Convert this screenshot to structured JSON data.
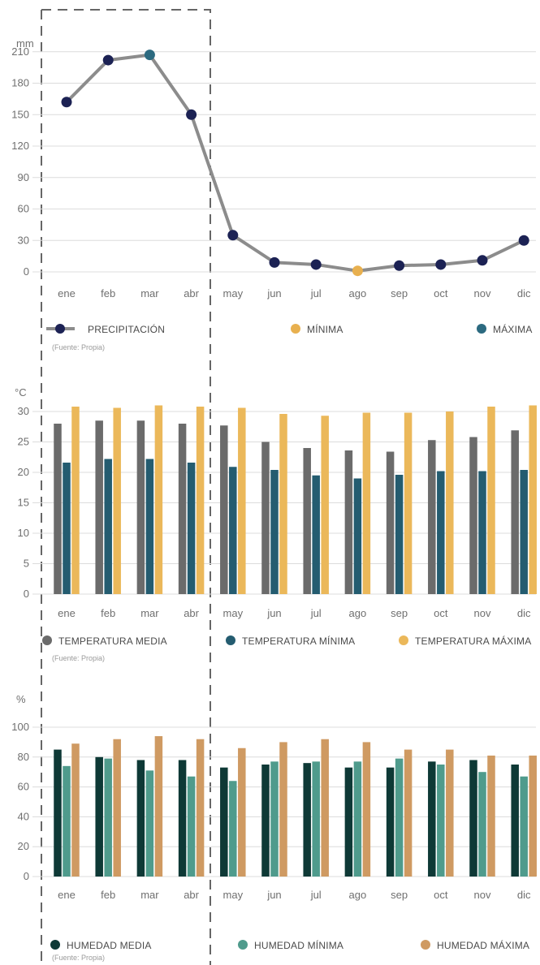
{
  "months": [
    "ene",
    "feb",
    "mar",
    "abr",
    "may",
    "jun",
    "jul",
    "ago",
    "sep",
    "oct",
    "nov",
    "dic"
  ],
  "source_note": "(Fuente: Propia)",
  "colors": {
    "grid": "#dcdcdc",
    "axis": "#8a8a8a",
    "dashed_frame": "#666666",
    "precip_line": "#8c8c8c",
    "precip_point": "#1c2254",
    "minima": "#e8b04f",
    "maxima": "#2c6a80",
    "temp_media": "#6b6b6b",
    "temp_min": "#245c70",
    "temp_max": "#ebb85a",
    "hum_media": "#0e3936",
    "hum_min": "#4f9b8c",
    "hum_max": "#cf9a62"
  },
  "chart_data": [
    {
      "type": "line",
      "unit": "mm",
      "x": [
        "ene",
        "feb",
        "mar",
        "abr",
        "may",
        "jun",
        "jul",
        "ago",
        "sep",
        "oct",
        "nov",
        "dic"
      ],
      "series": [
        {
          "name": "PRECIPITACIÓN",
          "values": [
            162,
            202,
            207,
            150,
            35,
            9,
            7,
            1,
            6,
            7,
            11,
            30
          ]
        }
      ],
      "highlights": {
        "min_month": "ago",
        "max_month": "mar"
      },
      "yticks": [
        0,
        30,
        60,
        90,
        120,
        150,
        180,
        210
      ],
      "ylim": [
        0,
        240
      ],
      "legend": [
        {
          "label": "PRECIPITACIÓN",
          "marker": "line-point"
        },
        {
          "label": "MÍNIMA",
          "marker": "dot"
        },
        {
          "label": "MÁXIMA",
          "marker": "dot"
        }
      ]
    },
    {
      "type": "bar",
      "unit": "°C",
      "categories": [
        "ene",
        "feb",
        "mar",
        "abr",
        "may",
        "jun",
        "jul",
        "ago",
        "sep",
        "oct",
        "nov",
        "dic"
      ],
      "series": [
        {
          "name": "TEMPERATURA MEDIA",
          "values": [
            28.0,
            28.5,
            28.5,
            28.0,
            27.7,
            25.0,
            24.0,
            23.6,
            23.4,
            25.3,
            25.8,
            26.9
          ]
        },
        {
          "name": "TEMPERATURA MÍNIMA",
          "values": [
            21.6,
            22.2,
            22.2,
            21.6,
            20.9,
            20.4,
            19.5,
            19.0,
            19.6,
            20.2,
            20.2,
            20.4
          ]
        },
        {
          "name": "TEMPERATURA MÁXIMA",
          "values": [
            30.8,
            30.6,
            31.0,
            30.8,
            30.6,
            29.6,
            29.3,
            29.8,
            29.8,
            30.0,
            30.8,
            31.0
          ]
        }
      ],
      "yticks": [
        0,
        5,
        10,
        15,
        20,
        25,
        30
      ],
      "ylim": [
        0,
        32
      ]
    },
    {
      "type": "bar",
      "unit": "%",
      "categories": [
        "ene",
        "feb",
        "mar",
        "abr",
        "may",
        "jun",
        "jul",
        "ago",
        "sep",
        "oct",
        "nov",
        "dic"
      ],
      "series": [
        {
          "name": "HUMEDAD MEDIA",
          "values": [
            85,
            80,
            78,
            78,
            73,
            75,
            76,
            73,
            73,
            77,
            78,
            75
          ]
        },
        {
          "name": "HUMEDAD MÍNIMA",
          "values": [
            74,
            79,
            71,
            67,
            64,
            77,
            77,
            77,
            79,
            75,
            70,
            67
          ]
        },
        {
          "name": "HUMEDAD MÁXIMA",
          "values": [
            89,
            92,
            94,
            92,
            86,
            90,
            92,
            90,
            85,
            85,
            81,
            81
          ]
        }
      ],
      "yticks": [
        0,
        20,
        40,
        60,
        80,
        100
      ],
      "ylim": [
        0,
        100
      ]
    }
  ]
}
